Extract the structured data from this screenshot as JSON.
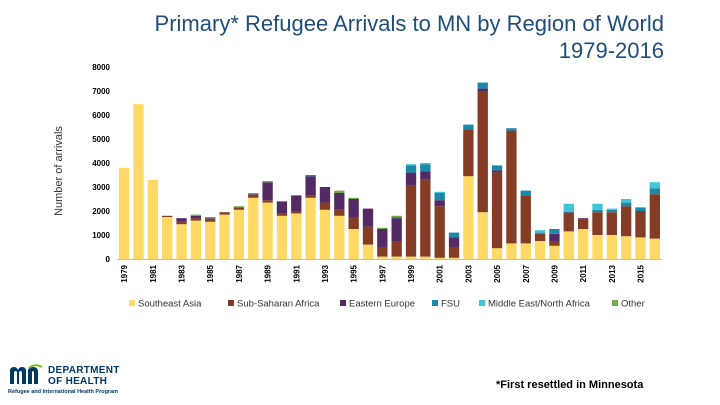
{
  "title_line1": "Primary* Refugee Arrivals to MN by Region of World",
  "title_line2": "1979-2016",
  "footnote": "*First resettled in Minnesota",
  "logo": {
    "line1": "DEPARTMENT",
    "line2": "OF HEALTH",
    "subtitle": "Refugee and International Health Program",
    "colors": {
      "navy": "#003865",
      "green": "#78be20"
    }
  },
  "chart_data": {
    "type": "bar",
    "stacked": true,
    "title": "Primary* Refugee Arrivals to MN by Region of World 1979-2016",
    "xlabel": "",
    "ylabel": "Number of arrivals",
    "ylim": [
      0,
      8000
    ],
    "yticks": [
      0,
      1000,
      2000,
      3000,
      4000,
      5000,
      6000,
      7000,
      8000
    ],
    "xtick_labels": [
      "1979",
      "1981",
      "1983",
      "1985",
      "1987",
      "1989",
      "1991",
      "1993",
      "1995",
      "1997",
      "1999",
      "2001",
      "2003",
      "2005",
      "2007",
      "2009",
      "2011",
      "2013",
      "2015"
    ],
    "grid": false,
    "legend_position": "bottom",
    "categories": [
      "1979",
      "1980",
      "1981",
      "1982",
      "1983",
      "1984",
      "1985",
      "1986",
      "1987",
      "1988",
      "1989",
      "1990",
      "1991",
      "1992",
      "1993",
      "1994",
      "1995",
      "1996",
      "1997",
      "1998",
      "1999",
      "2000",
      "2001",
      "2002",
      "2003",
      "2004",
      "2005",
      "2006",
      "2007",
      "2008",
      "2009",
      "2010",
      "2011",
      "2012",
      "2013",
      "2014",
      "2015",
      "2016"
    ],
    "series": [
      {
        "name": "Southeast Asia",
        "color": "#ffd966",
        "values": [
          3800,
          6450,
          3300,
          1750,
          1450,
          1600,
          1550,
          1850,
          2050,
          2550,
          2350,
          1800,
          1900,
          2550,
          2050,
          1800,
          1250,
          600,
          100,
          100,
          100,
          100,
          50,
          50,
          3450,
          1950,
          450,
          650,
          650,
          750,
          550,
          1150,
          1250,
          1000,
          1000,
          950,
          900,
          850
        ]
      },
      {
        "name": "Sub-Saharan Africa",
        "color": "#843c24",
        "values": [
          0,
          0,
          0,
          50,
          100,
          100,
          100,
          100,
          100,
          100,
          100,
          100,
          100,
          100,
          300,
          250,
          500,
          750,
          400,
          650,
          2950,
          3200,
          2150,
          450,
          1950,
          5050,
          3150,
          4700,
          2000,
          300,
          200,
          750,
          400,
          950,
          950,
          1250,
          1100,
          1850
        ]
      },
      {
        "name": "Eastern Europe",
        "color": "#532a63",
        "values": [
          0,
          0,
          0,
          0,
          150,
          100,
          50,
          0,
          0,
          50,
          750,
          500,
          650,
          800,
          650,
          700,
          750,
          750,
          750,
          950,
          550,
          350,
          250,
          400,
          0,
          100,
          100,
          0,
          0,
          0,
          300,
          50,
          50,
          0,
          0,
          0,
          0,
          0
        ]
      },
      {
        "name": "FSU",
        "color": "#1a88a8",
        "values": [
          0,
          0,
          0,
          0,
          0,
          0,
          0,
          0,
          0,
          0,
          0,
          0,
          0,
          50,
          0,
          0,
          0,
          0,
          0,
          50,
          300,
          300,
          300,
          200,
          200,
          250,
          200,
          100,
          200,
          50,
          200,
          0,
          0,
          100,
          100,
          150,
          150,
          250
        ]
      },
      {
        "name": "Middle East/North Africa",
        "color": "#41c6d9",
        "values": [
          0,
          0,
          0,
          0,
          0,
          0,
          0,
          0,
          0,
          0,
          0,
          0,
          0,
          0,
          0,
          0,
          0,
          0,
          0,
          0,
          50,
          50,
          50,
          0,
          0,
          0,
          0,
          0,
          0,
          100,
          0,
          350,
          0,
          250,
          50,
          150,
          0,
          250
        ]
      },
      {
        "name": "Other",
        "color": "#70ad47",
        "values": [
          0,
          0,
          0,
          0,
          0,
          50,
          50,
          0,
          50,
          50,
          50,
          0,
          0,
          0,
          0,
          100,
          50,
          0,
          50,
          50,
          0,
          0,
          0,
          0,
          0,
          0,
          0,
          0,
          0,
          0,
          0,
          0,
          0,
          0,
          0,
          0,
          0,
          0
        ]
      }
    ]
  }
}
